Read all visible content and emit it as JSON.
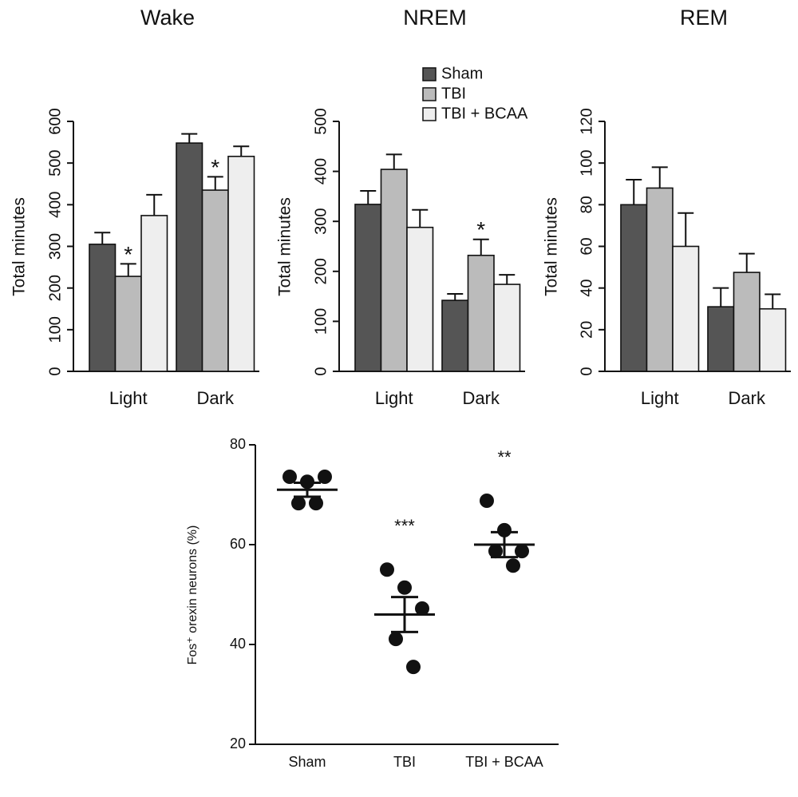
{
  "chart_data": [
    {
      "type": "bar",
      "title": "Wake",
      "ylabel": "Total minutes",
      "categories": [
        "Light",
        "Dark"
      ],
      "series": [
        {
          "color": "#555555",
          "values": [
            305,
            548
          ],
          "errors": [
            28,
            22
          ]
        },
        {
          "color": "#bbbbbb",
          "values": [
            228,
            435
          ],
          "errors": [
            30,
            32
          ]
        },
        {
          "color": "#eeeeee",
          "values": [
            374,
            516
          ],
          "errors": [
            50,
            24
          ]
        }
      ],
      "annotations": [
        {
          "text": "*",
          "series": 1,
          "category": 0
        },
        {
          "text": "*",
          "series": 1,
          "category": 1
        }
      ],
      "ylim": [
        0,
        600
      ],
      "yticks": [
        0,
        100,
        200,
        300,
        400,
        500,
        600
      ]
    },
    {
      "type": "bar",
      "title": "NREM",
      "ylabel": "Total minutes",
      "categories": [
        "Light",
        "Dark"
      ],
      "series": [
        {
          "name": "Sham",
          "color": "#555555",
          "values": [
            334,
            142
          ],
          "errors": [
            27,
            13
          ]
        },
        {
          "name": "TBI",
          "color": "#bbbbbb",
          "values": [
            404,
            232
          ],
          "errors": [
            30,
            32
          ]
        },
        {
          "name": "TBI + BCAA",
          "color": "#eeeeee",
          "values": [
            288,
            174
          ],
          "errors": [
            35,
            19
          ]
        }
      ],
      "annotations": [
        {
          "text": "*",
          "series": 1,
          "category": 1
        }
      ],
      "legend": true,
      "ylim": [
        0,
        500
      ],
      "yticks": [
        0,
        100,
        200,
        300,
        400,
        500
      ]
    },
    {
      "type": "bar",
      "title": "REM",
      "ylabel": "Total minutes",
      "categories": [
        "Light",
        "Dark"
      ],
      "series": [
        {
          "color": "#555555",
          "values": [
            80,
            31
          ],
          "errors": [
            12,
            9
          ]
        },
        {
          "color": "#bbbbbb",
          "values": [
            88,
            47.5
          ],
          "errors": [
            10,
            9
          ]
        },
        {
          "color": "#eeeeee",
          "values": [
            60,
            30
          ],
          "errors": [
            16,
            7
          ]
        }
      ],
      "ylim": [
        0,
        120
      ],
      "yticks": [
        0,
        20,
        40,
        60,
        80,
        100,
        120
      ]
    },
    {
      "type": "dot",
      "ylabel": "Fos⁺ orexin neurons (%)",
      "categories": [
        "Sham",
        "TBI",
        "TBI + BCAA"
      ],
      "values": [
        [
          73.6,
          72.6,
          73.6,
          68.3,
          68.3
        ],
        [
          55,
          51.4,
          47.2,
          41.1,
          35.5
        ],
        [
          68.8,
          62.9,
          58.7,
          58.7,
          55.8
        ]
      ],
      "means": [
        71,
        46,
        60
      ],
      "errors": [
        1.4,
        3.5,
        2.5
      ],
      "color": "#111111",
      "annotations": [
        {
          "text": "***",
          "category": 1
        },
        {
          "text": "**",
          "category": 2
        }
      ],
      "ylim": [
        20,
        80
      ],
      "yticks": [
        20,
        40,
        60,
        80
      ]
    }
  ]
}
